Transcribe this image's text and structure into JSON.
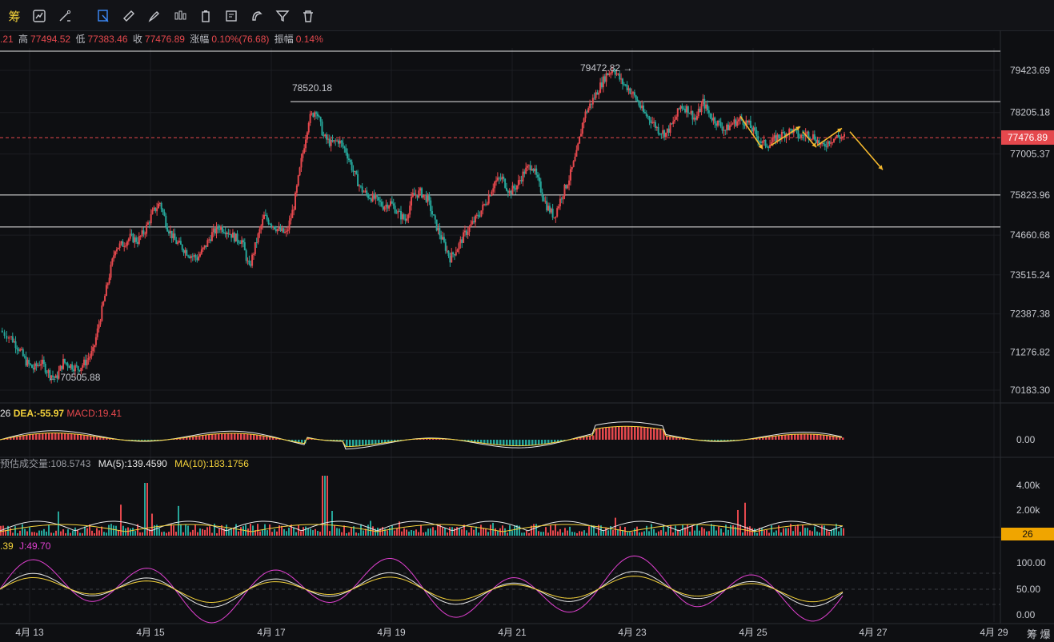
{
  "toolbar": {
    "items": [
      {
        "name": "chip-tool",
        "label": "筹",
        "icon": "chip-icon"
      },
      {
        "name": "indicator-tool",
        "label": "",
        "icon": "indicator-icon"
      },
      {
        "name": "draw-tool",
        "label": "",
        "icon": "pencil-line-icon"
      },
      {
        "name": "select-tool",
        "label": "",
        "icon": "cursor-box-icon",
        "active": true
      },
      {
        "name": "ruler-tool",
        "label": "",
        "icon": "ruler-icon"
      },
      {
        "name": "brush-tool",
        "label": "",
        "icon": "brush-icon"
      },
      {
        "name": "candle-tool",
        "label": "",
        "icon": "candlestick-icon"
      },
      {
        "name": "battery-tool",
        "label": "",
        "icon": "battery-icon"
      },
      {
        "name": "note-tool",
        "label": "",
        "icon": "note-icon"
      },
      {
        "name": "magnet-tool",
        "label": "",
        "icon": "magnet-icon"
      },
      {
        "name": "filter-tool",
        "label": "",
        "icon": "filter-icon"
      },
      {
        "name": "delete-tool",
        "label": "",
        "icon": "trash-icon"
      }
    ]
  },
  "ohlc": {
    "open_tail": ".21",
    "high_label": "高",
    "high": "77494.52",
    "low_label": "低",
    "low": "77383.46",
    "close_label": "收",
    "close": "77476.89",
    "change_label": "涨幅",
    "change": "0.10%(76.68)",
    "amp_label": "振幅",
    "amp": "0.14%"
  },
  "macd": {
    "dif_tail": "26",
    "dea": "DEA:-55.97",
    "macd": "MACD:19.41"
  },
  "volume": {
    "est": "预估成交量:108.5743",
    "ma5": "MA(5):139.4590",
    "ma10": "MA(10):183.1756",
    "current": "26"
  },
  "kdj": {
    "d_tail": ".39",
    "j": "J:49.70"
  },
  "current_price": "77476.89",
  "bottom_right": "筹 爆",
  "colors": {
    "up": "#e5484d",
    "down": "#26a69a",
    "ma_white": "#e8e8e8",
    "ma_yellow": "#f5d33b",
    "magenta": "#e040d0",
    "arrow": "#f5b82e"
  },
  "chart_data": {
    "type": "candlestick",
    "x_ticks": [
      "4月 13",
      "4月 15",
      "4月 17",
      "4月 19",
      "4月 21",
      "4月 23",
      "4月 25",
      "4月 27",
      "4月 29"
    ],
    "y_ticks": [
      "79423.69",
      "78205.18",
      "77005.37",
      "75823.96",
      "74660.68",
      "73515.24",
      "72387.38",
      "71276.82",
      "70183.30"
    ],
    "annotations": [
      {
        "text": "79472.82 →",
        "value": 79472.82
      },
      {
        "text": "78520.18",
        "value": 78520.18
      },
      {
        "text": "← 70505.88",
        "value": 70505.88
      }
    ],
    "horizontal_lines": [
      80000,
      78520.18,
      75823.96,
      74900
    ],
    "current_price": 77476.89,
    "path_points": [
      [
        0,
        71900
      ],
      [
        6,
        71700
      ],
      [
        10,
        71400
      ],
      [
        14,
        71000
      ],
      [
        18,
        70800
      ],
      [
        22,
        71000
      ],
      [
        26,
        70700
      ],
      [
        30,
        70505.88
      ],
      [
        34,
        71000
      ],
      [
        38,
        70900
      ],
      [
        42,
        70800
      ],
      [
        46,
        71000
      ],
      [
        50,
        71300
      ],
      [
        54,
        72300
      ],
      [
        58,
        73300
      ],
      [
        62,
        74300
      ],
      [
        66,
        74400
      ],
      [
        70,
        74600
      ],
      [
        74,
        74500
      ],
      [
        78,
        74800
      ],
      [
        82,
        75300
      ],
      [
        86,
        75600
      ],
      [
        90,
        74900
      ],
      [
        94,
        74500
      ],
      [
        98,
        74300
      ],
      [
        102,
        74100
      ],
      [
        106,
        74000
      ],
      [
        110,
        74300
      ],
      [
        114,
        74700
      ],
      [
        118,
        74900
      ],
      [
        122,
        74800
      ],
      [
        126,
        74600
      ],
      [
        130,
        74500
      ],
      [
        134,
        73700
      ],
      [
        138,
        74500
      ],
      [
        142,
        75200
      ],
      [
        146,
        75000
      ],
      [
        150,
        74800
      ],
      [
        154,
        74700
      ],
      [
        158,
        75500
      ],
      [
        162,
        76800
      ],
      [
        166,
        78000
      ],
      [
        170,
        78300
      ],
      [
        174,
        77500
      ],
      [
        178,
        77300
      ],
      [
        182,
        77400
      ],
      [
        186,
        77100
      ],
      [
        190,
        76500
      ],
      [
        194,
        76000
      ],
      [
        198,
        75800
      ],
      [
        202,
        75700
      ],
      [
        206,
        75500
      ],
      [
        210,
        75600
      ],
      [
        214,
        75300
      ],
      [
        218,
        75100
      ],
      [
        222,
        75800
      ],
      [
        226,
        75900
      ],
      [
        230,
        75700
      ],
      [
        234,
        75000
      ],
      [
        238,
        74500
      ],
      [
        242,
        74000
      ],
      [
        246,
        74300
      ],
      [
        250,
        74700
      ],
      [
        254,
        75000
      ],
      [
        258,
        75300
      ],
      [
        262,
        75700
      ],
      [
        266,
        76200
      ],
      [
        270,
        76300
      ],
      [
        274,
        75900
      ],
      [
        278,
        76100
      ],
      [
        282,
        76500
      ],
      [
        286,
        76700
      ],
      [
        290,
        76100
      ],
      [
        294,
        75500
      ],
      [
        298,
        75200
      ],
      [
        302,
        75800
      ],
      [
        306,
        76300
      ],
      [
        310,
        77000
      ],
      [
        314,
        78100
      ],
      [
        318,
        78500
      ],
      [
        322,
        78900
      ],
      [
        326,
        79300
      ],
      [
        330,
        79472.82
      ],
      [
        334,
        79100
      ],
      [
        338,
        78900
      ],
      [
        342,
        78600
      ],
      [
        346,
        78200
      ],
      [
        350,
        78000
      ],
      [
        354,
        77700
      ],
      [
        358,
        77600
      ],
      [
        362,
        77900
      ],
      [
        366,
        78400
      ],
      [
        370,
        78300
      ],
      [
        374,
        78000
      ],
      [
        378,
        78500
      ],
      [
        382,
        78100
      ],
      [
        386,
        77900
      ],
      [
        390,
        77700
      ],
      [
        394,
        77900
      ],
      [
        398,
        78000
      ],
      [
        402,
        77900
      ],
      [
        406,
        77600
      ],
      [
        410,
        77300
      ],
      [
        414,
        77300
      ],
      [
        418,
        77500
      ],
      [
        422,
        77600
      ],
      [
        426,
        77700
      ],
      [
        430,
        77500
      ],
      [
        434,
        77600
      ],
      [
        438,
        77500
      ],
      [
        442,
        77200
      ],
      [
        446,
        77400
      ],
      [
        450,
        77500
      ],
      [
        454,
        77500
      ]
    ],
    "forecast_arrows": [
      {
        "from": [
          77900,
          78300
        ],
        "to": [
          77100,
          77200
        ]
      },
      {
        "from": [
          77200,
          77300
        ],
        "to": [
          77700,
          77900
        ]
      },
      {
        "from": [
          77700,
          77600
        ],
        "to": [
          77300,
          77100
        ]
      },
      {
        "from": [
          77200,
          77300
        ],
        "to": [
          77700,
          77800
        ]
      },
      {
        "from": [
          77600,
          77700
        ],
        "to": [
          76600,
          76500
        ]
      }
    ]
  }
}
